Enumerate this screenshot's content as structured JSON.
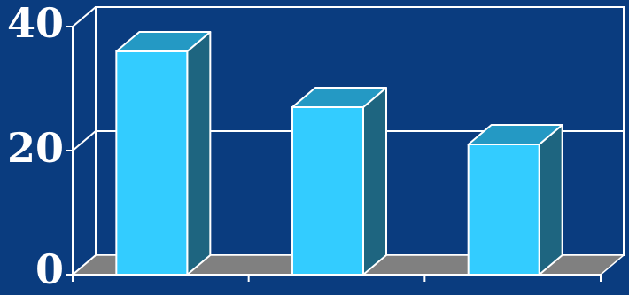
{
  "chart_data": {
    "type": "bar",
    "style": "3d",
    "categories": [
      "",
      "",
      ""
    ],
    "values": [
      36,
      27,
      21
    ],
    "ylim": [
      0,
      40
    ],
    "yticks": [
      0,
      20,
      40
    ],
    "ytick_labels": [
      "0",
      "20",
      "40"
    ],
    "grid": true,
    "title": "",
    "xlabel": "",
    "ylabel": ""
  },
  "colors": {
    "background": "#0a3c7f",
    "bar_front": "#33ccff",
    "bar_top": "#2499c4",
    "bar_side": "#1e6580",
    "floor": "#808080",
    "lines": "#ffffff"
  }
}
